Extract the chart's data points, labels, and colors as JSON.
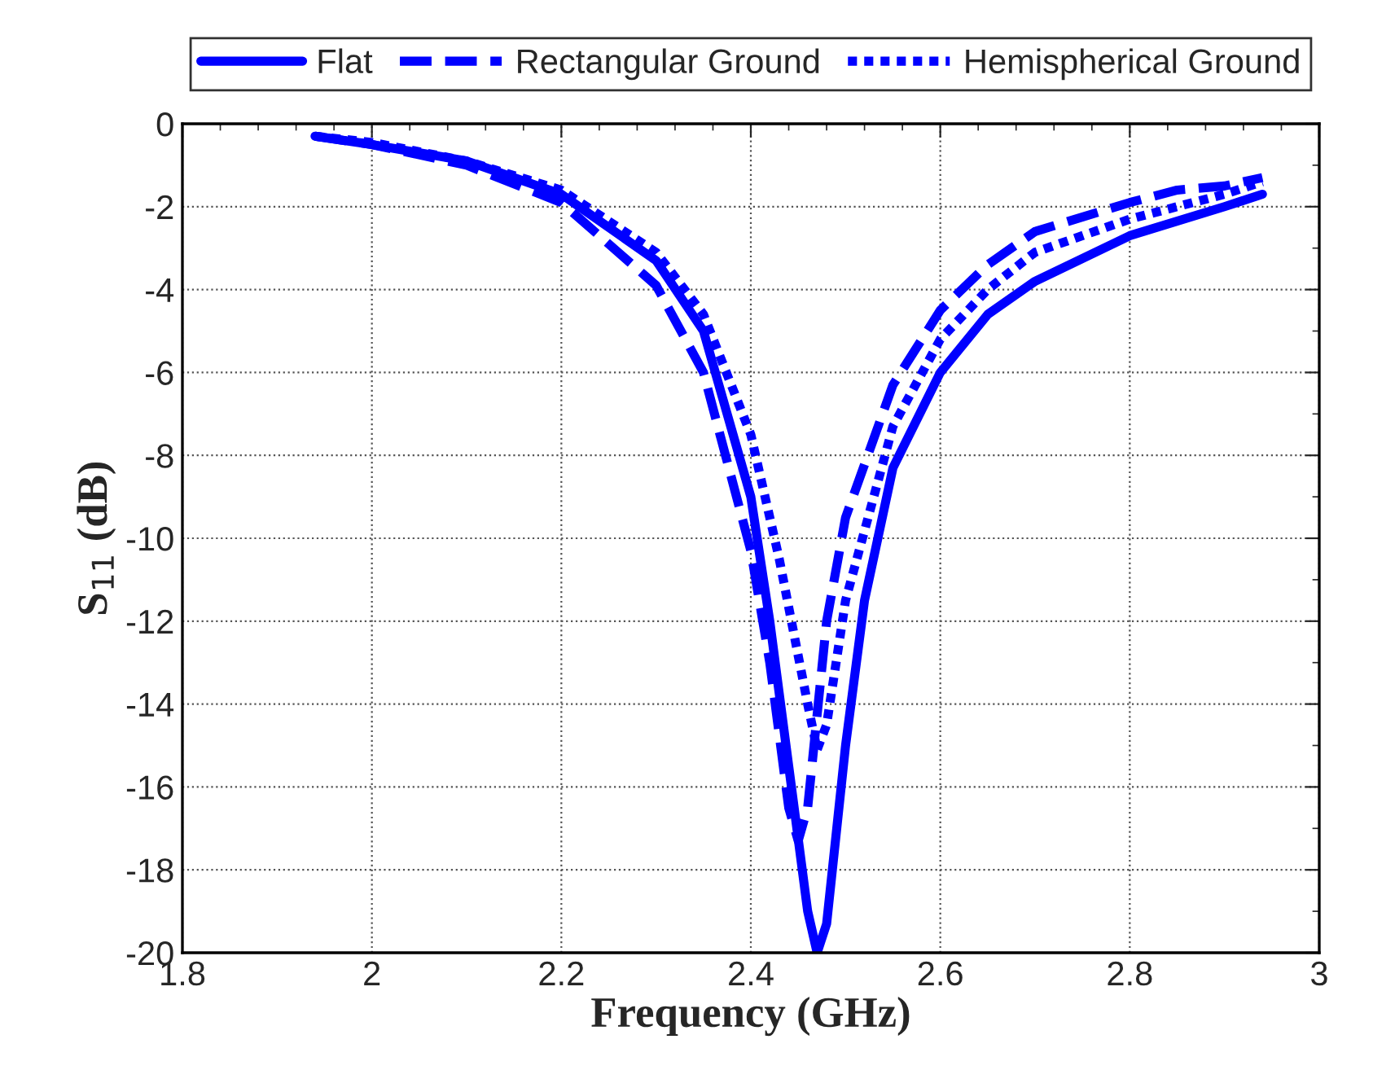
{
  "chart_data": {
    "type": "line",
    "xlabel": "Frequency (GHz)",
    "ylabel": "S$_{11}$ (dB)",
    "xlim": [
      1.8,
      3
    ],
    "xticks": [
      1.8,
      2,
      2.2,
      2.4,
      2.6,
      2.8,
      3
    ],
    "ylim": [
      -20,
      0
    ],
    "yticks": [
      -20,
      -18,
      -16,
      -14,
      -12,
      -10,
      -8,
      -6,
      -4,
      -2,
      0
    ],
    "grid": true,
    "legend": "top",
    "marker": "none",
    "series": [
      {
        "name": "Flat",
        "color": "#0000ff",
        "line_style": "solid",
        "x": [
          1.94,
          2.0,
          2.1,
          2.2,
          2.3,
          2.35,
          2.4,
          2.42,
          2.44,
          2.46,
          2.47,
          2.48,
          2.5,
          2.52,
          2.55,
          2.6,
          2.65,
          2.7,
          2.8,
          2.9,
          2.94
        ],
        "values": [
          -0.3,
          -0.5,
          -0.9,
          -1.7,
          -3.3,
          -5,
          -9,
          -12,
          -15.5,
          -19,
          -20,
          -19.3,
          -15,
          -11.5,
          -8.3,
          -6,
          -4.6,
          -3.8,
          -2.7,
          -2.0,
          -1.7
        ]
      },
      {
        "name": "Rectangular Ground",
        "color": "#0000ff",
        "line_style": "dashed",
        "x": [
          1.94,
          2.0,
          2.1,
          2.2,
          2.3,
          2.35,
          2.4,
          2.42,
          2.44,
          2.45,
          2.46,
          2.48,
          2.5,
          2.55,
          2.6,
          2.65,
          2.7,
          2.8,
          2.85,
          2.9,
          2.94
        ],
        "values": [
          -0.3,
          -0.5,
          -1.0,
          -1.9,
          -3.9,
          -6,
          -10.3,
          -13,
          -16.5,
          -17.3,
          -16.5,
          -12,
          -9.5,
          -6.3,
          -4.5,
          -3.4,
          -2.6,
          -1.9,
          -1.6,
          -1.5,
          -1.3
        ]
      },
      {
        "name": "Hemispherical Ground",
        "color": "#0000ff",
        "line_style": "dotted",
        "x": [
          1.94,
          2.0,
          2.1,
          2.2,
          2.3,
          2.35,
          2.4,
          2.43,
          2.46,
          2.47,
          2.48,
          2.5,
          2.55,
          2.6,
          2.65,
          2.7,
          2.8,
          2.9,
          2.94
        ],
        "values": [
          -0.3,
          -0.45,
          -0.9,
          -1.6,
          -3.1,
          -4.6,
          -7.5,
          -10.5,
          -14,
          -15.1,
          -14.5,
          -11.5,
          -7.3,
          -5.2,
          -4.0,
          -3.1,
          -2.3,
          -1.7,
          -1.4
        ]
      }
    ]
  }
}
